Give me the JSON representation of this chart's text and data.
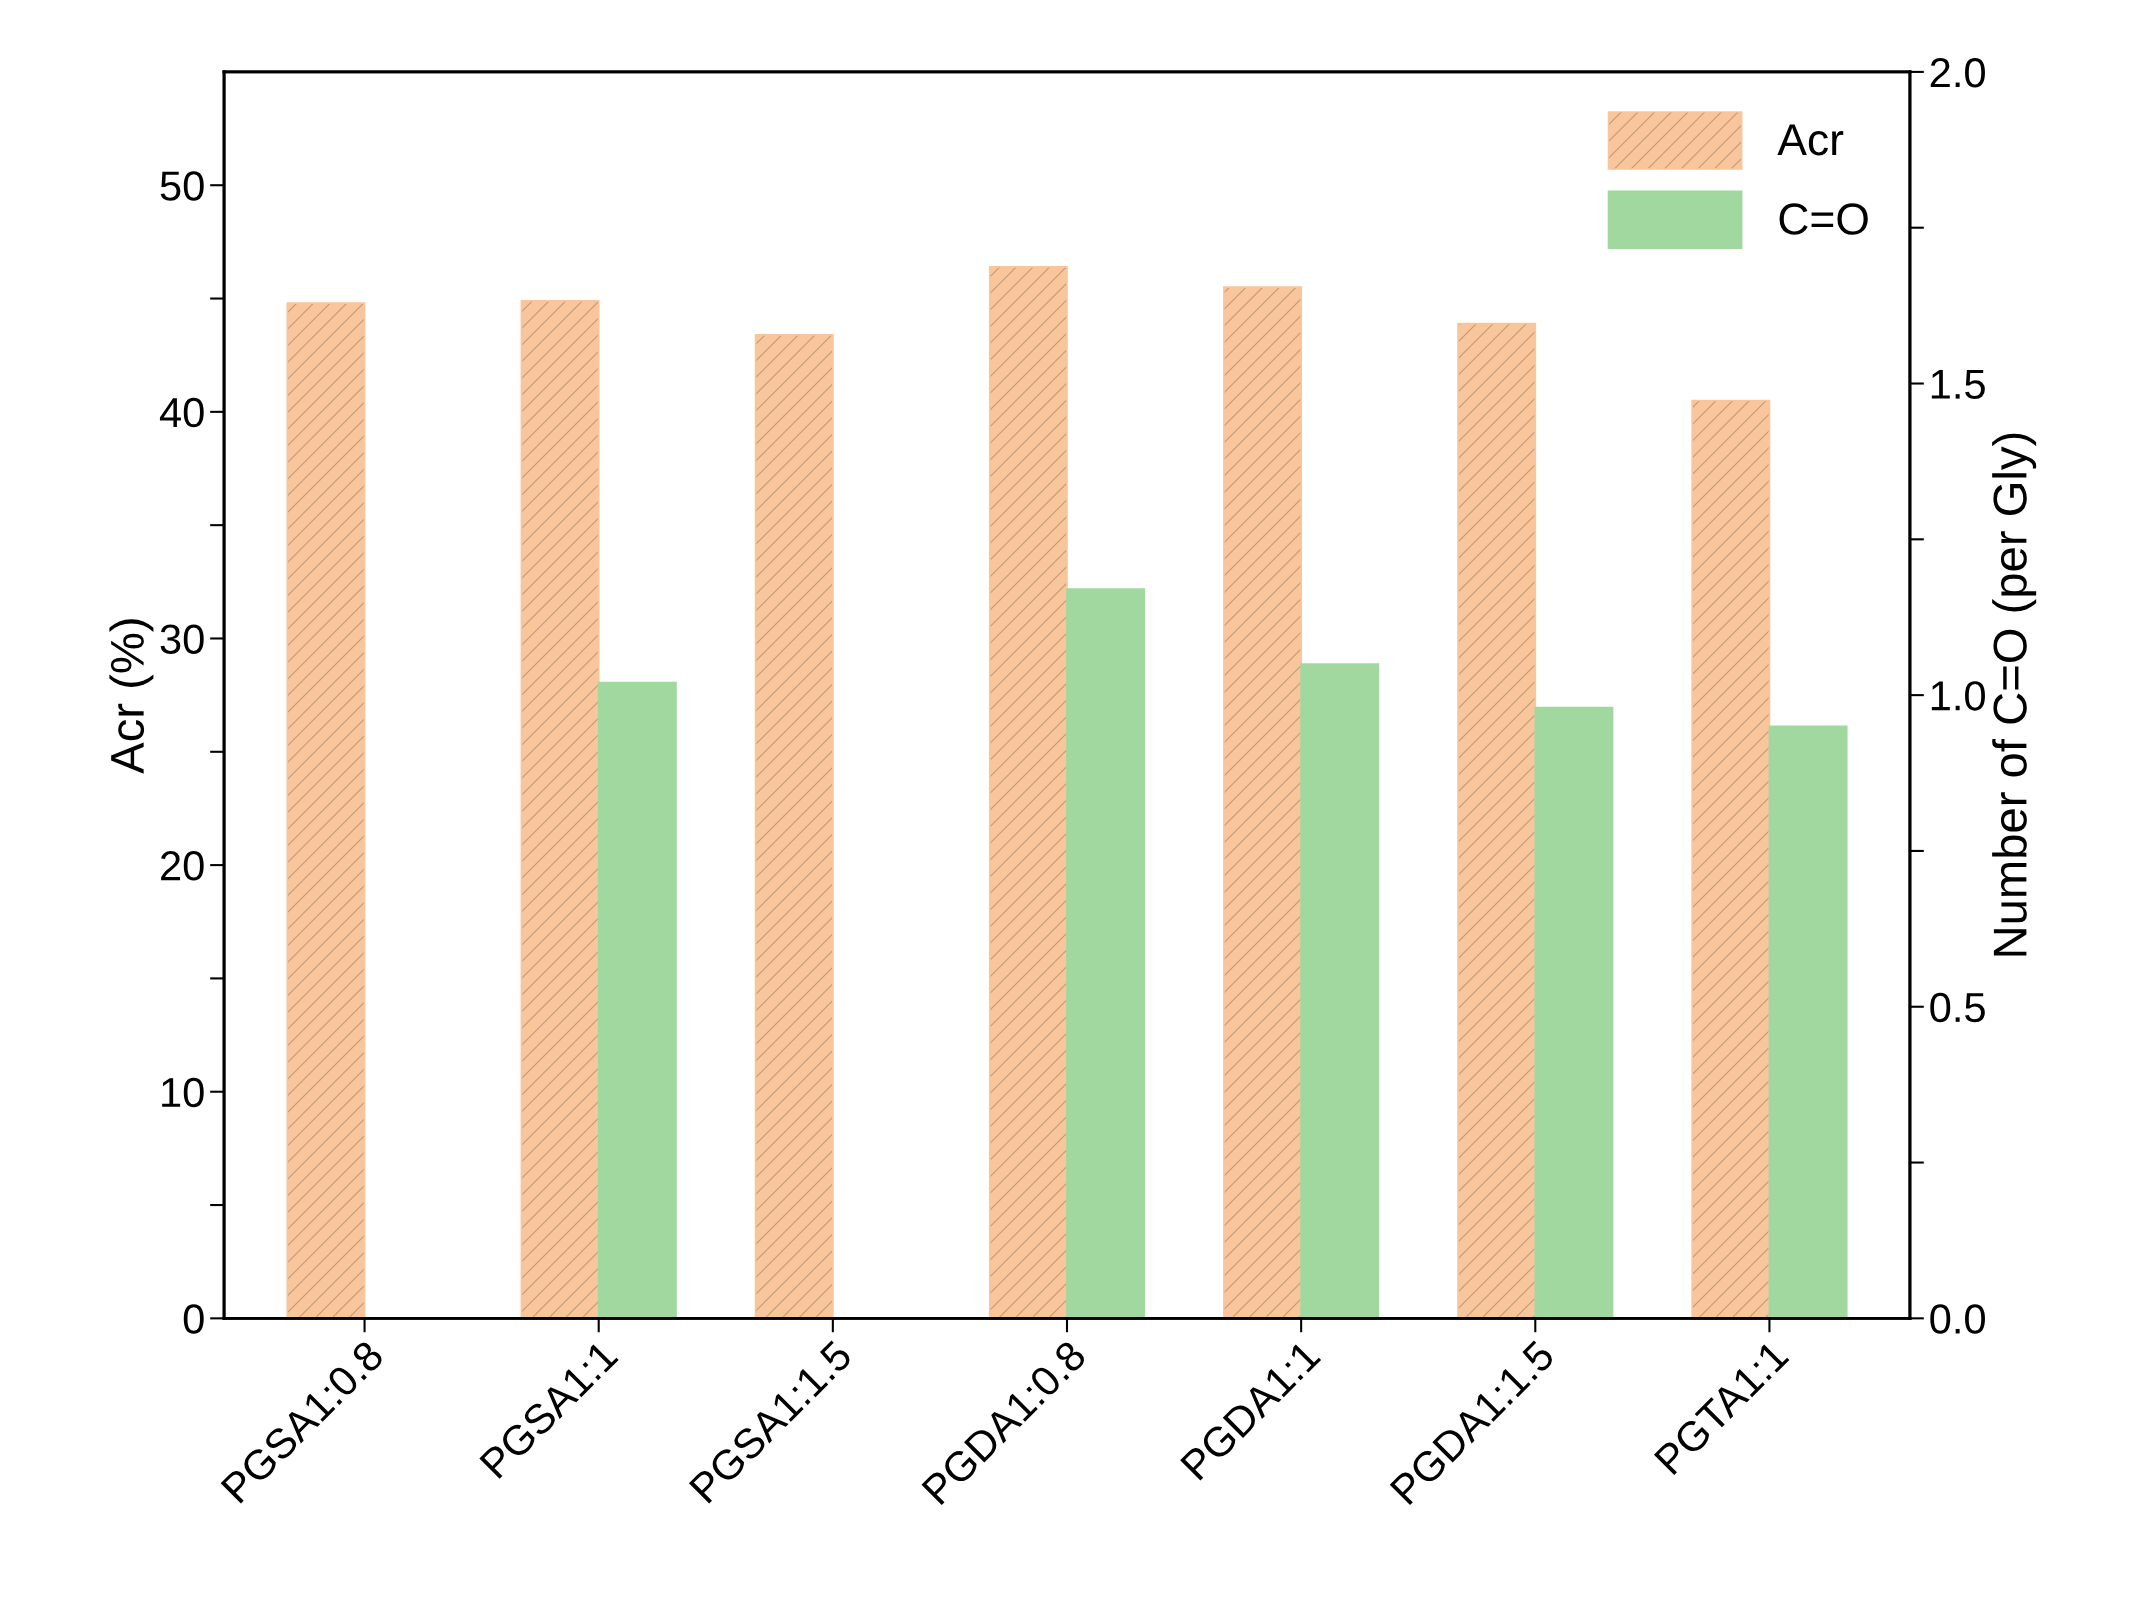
{
  "chart_data": {
    "type": "bar",
    "ylabel": "Acr (%)",
    "y2label": "Number of C=O (per Gly)",
    "categories": [
      "PGSA1:0.8",
      "PGSA1:1",
      "PGSA1:1.5",
      "PGDA1:0.8",
      "PGDA1:1",
      "PGDA1:1.5",
      "PGTA1:1"
    ],
    "series": [
      {
        "name": "Acr",
        "color": "#f9c69b",
        "values": [
          44.8,
          44.9,
          43.4,
          46.4,
          45.5,
          43.9,
          40.5
        ]
      },
      {
        "name": "C=O",
        "color": "#a0d8a0",
        "axis": "y2",
        "values": [
          null,
          1.02,
          null,
          1.17,
          1.05,
          0.98,
          0.95
        ]
      }
    ],
    "ylim": [
      0,
      55
    ],
    "yticks": [
      0,
      {
        "value": 5,
        "label": null
      },
      10,
      {
        "value": 15,
        "label": null
      },
      20,
      {
        "value": 25,
        "label": null
      },
      30,
      {
        "value": 35,
        "label": null
      },
      40,
      {
        "value": 45,
        "label": null
      },
      50
    ],
    "y2lim": [
      0,
      2.0
    ],
    "y2ticks": [
      {
        "value": 0,
        "label": "0.0"
      },
      {
        "value": 0.25,
        "label": null
      },
      0.5,
      {
        "value": 0.75,
        "label": null
      },
      {
        "value": 1,
        "label": "1.0"
      },
      {
        "value": 1.25,
        "label": null
      },
      1.5,
      {
        "value": 1.75,
        "label": null
      },
      {
        "value": 2,
        "label": "2.0"
      }
    ],
    "legend": "top right",
    "grid": false
  }
}
